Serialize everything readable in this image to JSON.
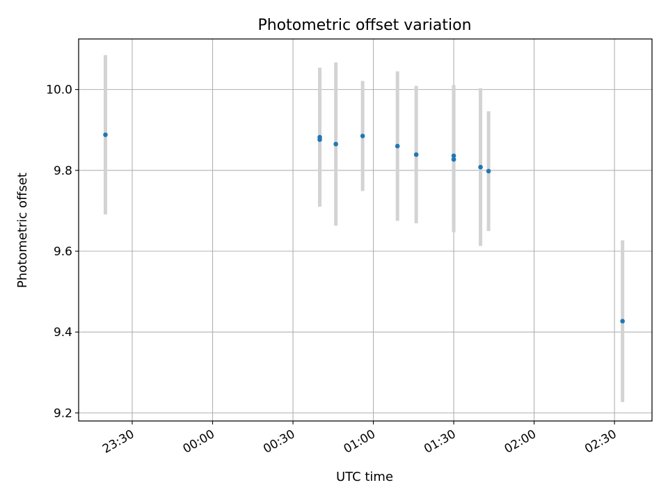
{
  "chart_data": {
    "type": "scatter",
    "title": "Photometric offset variation",
    "xlabel": "UTC time",
    "ylabel": "Photometric offset",
    "x_ticks": [
      "23:30",
      "00:00",
      "00:30",
      "01:00",
      "01:30",
      "02:00",
      "02:30"
    ],
    "y_ticks": [
      "9.2",
      "9.4",
      "9.6",
      "9.8",
      "10.0"
    ],
    "xlim": [
      "23:10",
      "02:44"
    ],
    "ylim": [
      9.18,
      10.125
    ],
    "grid": true,
    "colors": {
      "point": "#1f77b4",
      "errorbar": "#d3d3d3",
      "grid": "#b0b0b0"
    },
    "points": [
      {
        "time": "23:20",
        "y": 9.888,
        "err": 0.197
      },
      {
        "time": "00:40",
        "y": 9.876,
        "err": 0.165
      },
      {
        "time": "00:40",
        "y": 9.882,
        "err": 0.172
      },
      {
        "time": "00:46",
        "y": 9.865,
        "err": 0.202
      },
      {
        "time": "00:56",
        "y": 9.885,
        "err": 0.136
      },
      {
        "time": "01:09",
        "y": 9.86,
        "err": 0.185
      },
      {
        "time": "01:16",
        "y": 9.839,
        "err": 0.17
      },
      {
        "time": "01:30",
        "y": 9.836,
        "err": 0.175
      },
      {
        "time": "01:30",
        "y": 9.827,
        "err": 0.18
      },
      {
        "time": "01:40",
        "y": 9.808,
        "err": 0.195
      },
      {
        "time": "01:43",
        "y": 9.798,
        "err": 0.148
      },
      {
        "time": "02:33",
        "y": 9.427,
        "err": 0.2
      }
    ]
  }
}
